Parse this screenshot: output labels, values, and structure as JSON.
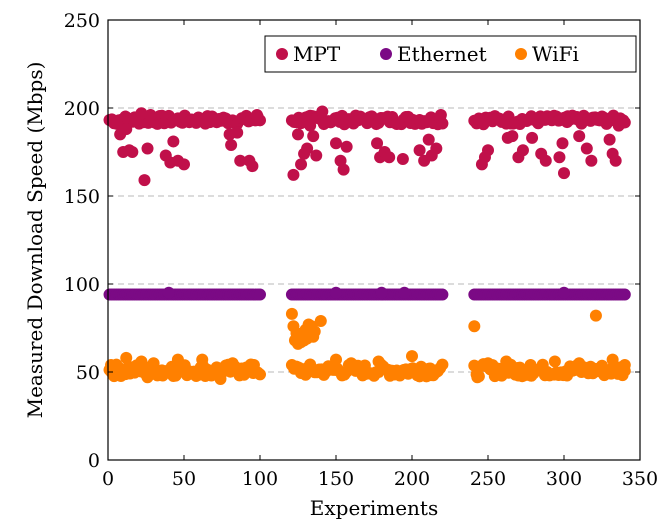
{
  "chart_data": {
    "type": "scatter",
    "xlabel": "Experiments",
    "ylabel": "Measured Download Speed (Mbps)",
    "xlim": [
      0,
      350
    ],
    "ylim": [
      0,
      250
    ],
    "xticks": [
      0,
      50,
      100,
      150,
      200,
      250,
      300,
      350
    ],
    "yticks": [
      0,
      50,
      100,
      150,
      200,
      250
    ],
    "grid": "horizontal dashed",
    "legend_position": "top-right",
    "segments": [
      [
        1,
        100
      ],
      [
        121,
        220
      ],
      [
        241,
        340
      ]
    ],
    "series": [
      {
        "name": "MPT",
        "color": "#c0104a",
        "baseline": 193,
        "points": [
          [
            2,
            193
          ],
          [
            6,
            191
          ],
          [
            8,
            185
          ],
          [
            10,
            175
          ],
          [
            12,
            188
          ],
          [
            14,
            176
          ],
          [
            16,
            175
          ],
          [
            18,
            193
          ],
          [
            22,
            197
          ],
          [
            24,
            159
          ],
          [
            26,
            177
          ],
          [
            28,
            196
          ],
          [
            38,
            173
          ],
          [
            41,
            169
          ],
          [
            43,
            181
          ],
          [
            46,
            170
          ],
          [
            50,
            168
          ],
          [
            56,
            193
          ],
          [
            80,
            185
          ],
          [
            81,
            179
          ],
          [
            85,
            186
          ],
          [
            87,
            170
          ],
          [
            93,
            170
          ],
          [
            95,
            167
          ],
          [
            98,
            196
          ],
          [
            122,
            162
          ],
          [
            125,
            185
          ],
          [
            127,
            168
          ],
          [
            129,
            174
          ],
          [
            131,
            177
          ],
          [
            133,
            190
          ],
          [
            135,
            184
          ],
          [
            137,
            173
          ],
          [
            141,
            198
          ],
          [
            150,
            180
          ],
          [
            153,
            170
          ],
          [
            155,
            165
          ],
          [
            157,
            178
          ],
          [
            177,
            180
          ],
          [
            179,
            172
          ],
          [
            182,
            175
          ],
          [
            185,
            172
          ],
          [
            194,
            171
          ],
          [
            205,
            176
          ],
          [
            208,
            170
          ],
          [
            211,
            182
          ],
          [
            213,
            173
          ],
          [
            216,
            177
          ],
          [
            219,
            196
          ],
          [
            244,
            194
          ],
          [
            246,
            168
          ],
          [
            248,
            172
          ],
          [
            250,
            176
          ],
          [
            263,
            183
          ],
          [
            266,
            184
          ],
          [
            270,
            172
          ],
          [
            273,
            176
          ],
          [
            279,
            183
          ],
          [
            285,
            174
          ],
          [
            288,
            170
          ],
          [
            297,
            172
          ],
          [
            299,
            180
          ],
          [
            300,
            163
          ],
          [
            302,
            192
          ],
          [
            310,
            184
          ],
          [
            315,
            177
          ],
          [
            318,
            170
          ],
          [
            330,
            182
          ],
          [
            332,
            174
          ],
          [
            334,
            170
          ],
          [
            336,
            190
          ],
          [
            339,
            193
          ]
        ]
      },
      {
        "name": "Ethernet",
        "color": "#7b0a85",
        "baseline": 94,
        "points": [
          [
            40,
            95
          ],
          [
            150,
            95
          ],
          [
            180,
            95
          ],
          [
            195,
            95
          ],
          [
            300,
            95
          ]
        ]
      },
      {
        "name": "WiFi",
        "color": "#ff8000",
        "baseline": 51,
        "points": [
          [
            2,
            54
          ],
          [
            4,
            49
          ],
          [
            8,
            52
          ],
          [
            12,
            58
          ],
          [
            22,
            56
          ],
          [
            26,
            47
          ],
          [
            30,
            55
          ],
          [
            36,
            48
          ],
          [
            42,
            53
          ],
          [
            46,
            57
          ],
          [
            55,
            50
          ],
          [
            62,
            57
          ],
          [
            68,
            48
          ],
          [
            74,
            46
          ],
          [
            82,
            55
          ],
          [
            88,
            52
          ],
          [
            96,
            54
          ],
          [
            121,
            83
          ],
          [
            122,
            76
          ],
          [
            123,
            68
          ],
          [
            124,
            72
          ],
          [
            125,
            66
          ],
          [
            126,
            70
          ],
          [
            127,
            67
          ],
          [
            128,
            72
          ],
          [
            129,
            68
          ],
          [
            130,
            74
          ],
          [
            131,
            69
          ],
          [
            132,
            77
          ],
          [
            133,
            71
          ],
          [
            134,
            76
          ],
          [
            135,
            70
          ],
          [
            136,
            73
          ],
          [
            140,
            79
          ],
          [
            142,
            50
          ],
          [
            150,
            57
          ],
          [
            160,
            55
          ],
          [
            170,
            49
          ],
          [
            178,
            56
          ],
          [
            185,
            51
          ],
          [
            192,
            48
          ],
          [
            200,
            59
          ],
          [
            206,
            53
          ],
          [
            212,
            52
          ],
          [
            241,
            76
          ],
          [
            243,
            47
          ],
          [
            250,
            55
          ],
          [
            256,
            52
          ],
          [
            262,
            56
          ],
          [
            270,
            48
          ],
          [
            278,
            54
          ],
          [
            286,
            52
          ],
          [
            294,
            56
          ],
          [
            302,
            48
          ],
          [
            310,
            55
          ],
          [
            316,
            52
          ],
          [
            321,
            82
          ],
          [
            326,
            49
          ],
          [
            332,
            57
          ],
          [
            336,
            51
          ],
          [
            340,
            54
          ]
        ]
      }
    ]
  }
}
